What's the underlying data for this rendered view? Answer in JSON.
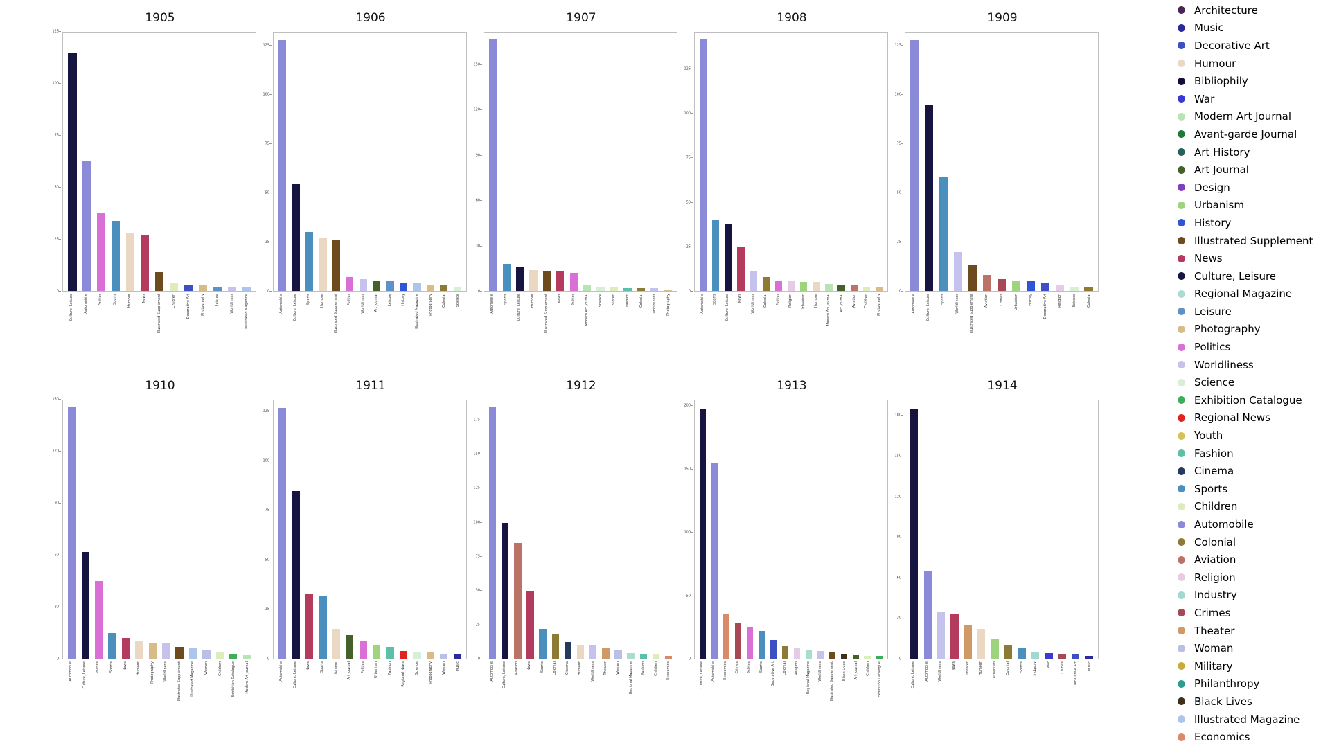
{
  "legend": {
    "items": [
      {
        "label": "Architecture",
        "color": "#4B2354"
      },
      {
        "label": "Music",
        "color": "#2A2A9E"
      },
      {
        "label": "Decorative Art",
        "color": "#3D50C3"
      },
      {
        "label": "Humour",
        "color": "#EBD8C3"
      },
      {
        "label": "Bibliophily",
        "color": "#10103A"
      },
      {
        "label": "War",
        "color": "#3A3AD0"
      },
      {
        "label": "Modern Art Journal",
        "color": "#B9E3B5"
      },
      {
        "label": "Avant-garde Journal",
        "color": "#1E7A34"
      },
      {
        "label": "Art History",
        "color": "#27615C"
      },
      {
        "label": "Art Journal",
        "color": "#44612B"
      },
      {
        "label": "Design",
        "color": "#7D3FC1"
      },
      {
        "label": "Urbanism",
        "color": "#9FD47F"
      },
      {
        "label": "History",
        "color": "#2F55D4"
      },
      {
        "label": "Illustrated Supplement",
        "color": "#6E4A1F"
      },
      {
        "label": "News",
        "color": "#B43A5E"
      },
      {
        "label": "Culture, Leisure",
        "color": "#15153F"
      },
      {
        "label": "Regional Magazine",
        "color": "#ABDCD2"
      },
      {
        "label": "Leisure",
        "color": "#6090C8"
      },
      {
        "label": "Photography",
        "color": "#D8BB86"
      },
      {
        "label": "Politics",
        "color": "#DA70D6"
      },
      {
        "label": "Worldliness",
        "color": "#C6C2EE"
      },
      {
        "label": "Science",
        "color": "#D6EFD6"
      },
      {
        "label": "Exhibition Catalogue",
        "color": "#3FAE58"
      },
      {
        "label": "Regional News",
        "color": "#E32222"
      },
      {
        "label": "Youth",
        "color": "#D6C254"
      },
      {
        "label": "Fashion",
        "color": "#5CC0A8"
      },
      {
        "label": "Cinema",
        "color": "#263A5E"
      },
      {
        "label": "Sports",
        "color": "#4A8FBD"
      },
      {
        "label": "Children",
        "color": "#DCEDBB"
      },
      {
        "label": "Automobile",
        "color": "#8A8AD8"
      },
      {
        "label": "Colonial",
        "color": "#8C7B35"
      },
      {
        "label": "Aviation",
        "color": "#BB7368"
      },
      {
        "label": "Religion",
        "color": "#E5CBE5"
      },
      {
        "label": "Industry",
        "color": "#A2D8CF"
      },
      {
        "label": "Crimes",
        "color": "#A84855"
      },
      {
        "label": "Theater",
        "color": "#CF9A66"
      },
      {
        "label": "Woman",
        "color": "#BABFE8"
      },
      {
        "label": "Military",
        "color": "#C9AB3A"
      },
      {
        "label": "Philanthropy",
        "color": "#2D9D90"
      },
      {
        "label": "Black Lives",
        "color": "#402E1E"
      },
      {
        "label": "Illustrated Magazine",
        "color": "#ABC6EA"
      },
      {
        "label": "Economics",
        "color": "#D98A68"
      }
    ]
  },
  "chart_data": {
    "type": "bar",
    "layout": {
      "rows": 2,
      "cols": 5,
      "grid": false,
      "legend_position": "right"
    },
    "note": "Small multiples: magazine category counts per year, bars sorted descending; colors keyed to legend categories",
    "charts": [
      {
        "title": "1905",
        "ylim": [
          0,
          125
        ],
        "yticks": [
          0,
          25,
          50,
          75,
          100,
          125
        ],
        "categories": [
          "Culture, Leisure",
          "Automobile",
          "Politics",
          "Sports",
          "Humour",
          "News",
          "Illustrated Supplement",
          "Children",
          "Decorative Art",
          "Photography",
          "Leisure",
          "Worldliness",
          "Illustrated Magazine"
        ],
        "values": [
          115,
          63,
          38,
          34,
          28,
          27,
          9,
          4,
          3,
          3,
          2,
          2,
          2
        ]
      },
      {
        "title": "1906",
        "ylim": [
          0,
          132
        ],
        "yticks": [
          0,
          25,
          50,
          75,
          100,
          125
        ],
        "categories": [
          "Automobile",
          "Culture, Leisure",
          "Sports",
          "Humour",
          "Illustrated Supplement",
          "Politics",
          "Worldliness",
          "Art Journal",
          "Leisure",
          "History",
          "Illustrated Magazine",
          "Photography",
          "Colonial",
          "Science"
        ],
        "values": [
          128,
          55,
          30,
          27,
          26,
          7,
          6,
          5,
          5,
          4,
          4,
          3,
          3,
          2
        ]
      },
      {
        "title": "1907",
        "ylim": [
          0,
          172
        ],
        "yticks": [
          0,
          30,
          60,
          90,
          120,
          150
        ],
        "categories": [
          "Automobile",
          "Sports",
          "Culture, Leisure",
          "Humour",
          "Illustrated Supplement",
          "News",
          "Politics",
          "Modern Art Journal",
          "Science",
          "Children",
          "Fashion",
          "Colonial",
          "Worldliness",
          "Photography"
        ],
        "values": [
          168,
          18,
          16,
          14,
          13,
          13,
          12,
          4,
          3,
          3,
          2,
          2,
          2,
          1
        ]
      },
      {
        "title": "1908",
        "ylim": [
          0,
          146
        ],
        "yticks": [
          0,
          25,
          50,
          75,
          100,
          125
        ],
        "categories": [
          "Automobile",
          "Sports",
          "Culture, Leisure",
          "News",
          "Worldliness",
          "Colonial",
          "Politics",
          "Religion",
          "Urbanism",
          "Humour",
          "Modern Art Journal",
          "Art Journal",
          "Aviation",
          "Children",
          "Photography"
        ],
        "values": [
          142,
          40,
          38,
          25,
          11,
          8,
          6,
          6,
          5,
          5,
          4,
          3,
          3,
          2,
          2
        ]
      },
      {
        "title": "1909",
        "ylim": [
          0,
          132
        ],
        "yticks": [
          0,
          25,
          50,
          75,
          100,
          125
        ],
        "categories": [
          "Automobile",
          "Culture, Leisure",
          "Sports",
          "Worldliness",
          "Illustrated Supplement",
          "Aviation",
          "Crimes",
          "Urbanism",
          "History",
          "Decorative Art",
          "Religion",
          "Science",
          "Colonial"
        ],
        "values": [
          128,
          95,
          58,
          20,
          13,
          8,
          6,
          5,
          5,
          4,
          3,
          2,
          2
        ]
      },
      {
        "title": "1910",
        "ylim": [
          0,
          150
        ],
        "yticks": [
          0,
          30,
          60,
          90,
          120,
          150
        ],
        "categories": [
          "Automobile",
          "Culture, Leisure",
          "Politics",
          "Sports",
          "News",
          "Humour",
          "Photography",
          "Worldliness",
          "Illustrated Supplement",
          "Illustrated Magazine",
          "Woman",
          "Children",
          "Exhibition Catalogue",
          "Modern Art Journal"
        ],
        "values": [
          146,
          62,
          45,
          15,
          12,
          10,
          9,
          9,
          7,
          6,
          5,
          4,
          3,
          2
        ]
      },
      {
        "title": "1911",
        "ylim": [
          0,
          131
        ],
        "yticks": [
          0,
          25,
          50,
          75,
          100,
          125
        ],
        "categories": [
          "Automobile",
          "Culture, Leisure",
          "News",
          "Sports",
          "Humour",
          "Art Journal",
          "Politics",
          "Urbanism",
          "Fashion",
          "Regional News",
          "Science",
          "Photography",
          "Woman",
          "Music"
        ],
        "values": [
          127,
          85,
          33,
          32,
          15,
          12,
          9,
          7,
          6,
          4,
          3,
          3,
          2,
          2
        ]
      },
      {
        "title": "1912",
        "ylim": [
          0,
          190
        ],
        "yticks": [
          0,
          25,
          50,
          75,
          100,
          125,
          150,
          175
        ],
        "categories": [
          "Automobile",
          "Culture, Leisure",
          "Aviation",
          "News",
          "Sports",
          "Colonial",
          "Cinema",
          "Humour",
          "Worldliness",
          "Theater",
          "Woman",
          "Regional Magazine",
          "Fashion",
          "Children",
          "Economics"
        ],
        "values": [
          185,
          100,
          85,
          50,
          22,
          18,
          12,
          10,
          10,
          8,
          6,
          4,
          3,
          3,
          2
        ]
      },
      {
        "title": "1913",
        "ylim": [
          0,
          205
        ],
        "yticks": [
          0,
          50,
          100,
          150,
          200
        ],
        "categories": [
          "Culture, Leisure",
          "Automobile",
          "Economics",
          "Crimes",
          "Politics",
          "Sports",
          "Decorative Art",
          "Colonial",
          "Religion",
          "Regional Magazine",
          "Worldliness",
          "Illustrated Supplement",
          "Black Lives",
          "Art Journal",
          "Children",
          "Exhibition Catalogue"
        ],
        "values": [
          198,
          155,
          35,
          28,
          25,
          22,
          15,
          10,
          8,
          7,
          6,
          5,
          4,
          3,
          2,
          2
        ]
      },
      {
        "title": "1914",
        "ylim": [
          0,
          192
        ],
        "yticks": [
          0,
          30,
          60,
          90,
          120,
          150,
          180
        ],
        "categories": [
          "Culture, Leisure",
          "Automobile",
          "Worldliness",
          "News",
          "Theater",
          "Humour",
          "Urbanism",
          "Colonial",
          "Sports",
          "Industry",
          "War",
          "Crimes",
          "Decorative Art",
          "Music"
        ],
        "values": [
          186,
          65,
          35,
          33,
          25,
          22,
          15,
          10,
          8,
          5,
          4,
          3,
          3,
          2
        ]
      }
    ]
  }
}
